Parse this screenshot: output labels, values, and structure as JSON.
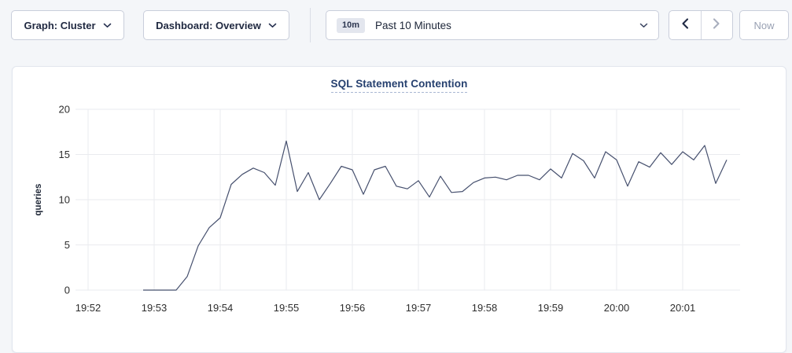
{
  "toolbar": {
    "graph_dropdown": {
      "label": "Graph: Cluster"
    },
    "dashboard_dropdown": {
      "label": "Dashboard: Overview"
    },
    "time_picker": {
      "badge": "10m",
      "label": "Past 10 Minutes"
    },
    "now_button_label": "Now"
  },
  "chart_data": {
    "type": "line",
    "title": "SQL Statement Contention",
    "xlabel": "",
    "ylabel": "queries",
    "ylim": [
      0,
      20
    ],
    "yticks": [
      0,
      5,
      10,
      15,
      20
    ],
    "xticks": [
      "19:52",
      "19:53",
      "19:54",
      "19:55",
      "19:56",
      "19:57",
      "19:58",
      "19:59",
      "20:00",
      "20:01"
    ],
    "grid": true,
    "legend": "none",
    "line_color": "#46506e",
    "series": [
      {
        "name": "SQL Statement Contention",
        "x": [
          "19:52:50",
          "19:53:00",
          "19:53:10",
          "19:53:20",
          "19:53:30",
          "19:53:40",
          "19:53:50",
          "19:54:00",
          "19:54:10",
          "19:54:20",
          "19:54:30",
          "19:54:40",
          "19:54:50",
          "19:55:00",
          "19:55:10",
          "19:55:20",
          "19:55:30",
          "19:55:40",
          "19:55:50",
          "19:56:00",
          "19:56:10",
          "19:56:20",
          "19:56:30",
          "19:56:40",
          "19:56:50",
          "19:57:00",
          "19:57:10",
          "19:57:20",
          "19:57:30",
          "19:57:40",
          "19:57:50",
          "19:58:00",
          "19:58:10",
          "19:58:20",
          "19:58:30",
          "19:58:40",
          "19:58:50",
          "19:59:00",
          "19:59:10",
          "19:59:20",
          "19:59:30",
          "19:59:40",
          "19:59:50",
          "20:00:00",
          "20:00:10",
          "20:00:20",
          "20:00:30",
          "20:00:40",
          "20:00:50",
          "20:01:00",
          "20:01:10",
          "20:01:20",
          "20:01:30",
          "20:01:40"
        ],
        "values": [
          0,
          0,
          0,
          0,
          1.5,
          4.9,
          6.9,
          8,
          11.7,
          12.8,
          13.5,
          13,
          11.6,
          16.5,
          10.9,
          13,
          10,
          11.8,
          13.7,
          13.3,
          10.6,
          13.3,
          13.7,
          11.5,
          11.2,
          12.1,
          10.3,
          12.6,
          10.8,
          10.9,
          11.9,
          12.4,
          12.5,
          12.2,
          12.7,
          12.7,
          12.2,
          13.4,
          12.4,
          15.1,
          14.3,
          12.4,
          15.3,
          14.4,
          11.5,
          14.2,
          13.6,
          15.2,
          13.9,
          15.3,
          14.4,
          16,
          11.8,
          14.4
        ]
      }
    ]
  },
  "colors": {
    "page_background": "#f4f6f9",
    "line": "#46506e",
    "title_text": "#26406f",
    "grid": "#eaebef"
  }
}
